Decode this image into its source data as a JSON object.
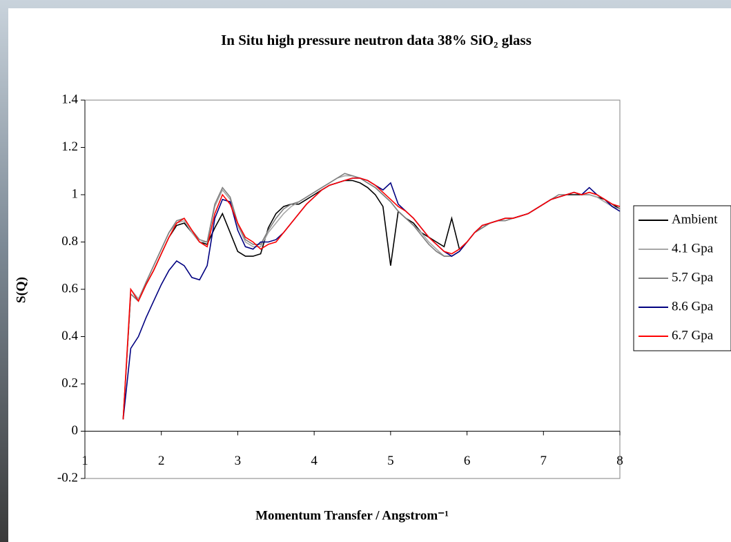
{
  "chart_data": {
    "type": "line",
    "title": "In Situ high pressure neutron data 38% SiO₂ glass",
    "x_label": "Momentum Transfer / Angstrom⁻¹",
    "y_label": "S(Q)",
    "xlim": [
      1,
      8
    ],
    "xticks": [
      1,
      2,
      3,
      4,
      5,
      6,
      7,
      8
    ],
    "ylim": [
      -0.2,
      1.4
    ],
    "yticks": [
      -0.2,
      0,
      0.2,
      0.4,
      0.6,
      0.8,
      1,
      1.2,
      1.4
    ],
    "legend": "right",
    "x": [
      1.5,
      1.6,
      1.7,
      1.8,
      1.9,
      2.0,
      2.1,
      2.2,
      2.3,
      2.4,
      2.5,
      2.6,
      2.7,
      2.8,
      2.9,
      3.0,
      3.1,
      3.2,
      3.3,
      3.4,
      3.5,
      3.6,
      3.7,
      3.8,
      3.9,
      4.0,
      4.1,
      4.2,
      4.3,
      4.4,
      4.5,
      4.6,
      4.7,
      4.8,
      4.9,
      5.0,
      5.1,
      5.2,
      5.3,
      5.4,
      5.5,
      5.6,
      5.7,
      5.8,
      5.9,
      6.0,
      6.1,
      6.2,
      6.3,
      6.4,
      6.5,
      6.6,
      6.7,
      6.8,
      6.9,
      7.0,
      7.1,
      7.2,
      7.3,
      7.4,
      7.5,
      7.6,
      7.7,
      7.8,
      7.9,
      8.0
    ],
    "series": [
      {
        "name": "Ambient",
        "color": "#000000",
        "values": [
          0.05,
          0.58,
          0.55,
          0.62,
          0.68,
          0.75,
          0.82,
          0.87,
          0.88,
          0.84,
          0.8,
          0.79,
          0.86,
          0.92,
          0.84,
          0.76,
          0.74,
          0.74,
          0.75,
          0.86,
          0.92,
          0.95,
          0.96,
          0.96,
          0.98,
          1.0,
          1.02,
          1.04,
          1.05,
          1.06,
          1.06,
          1.05,
          1.03,
          1.0,
          0.95,
          0.7,
          0.93,
          0.9,
          0.88,
          0.84,
          0.82,
          0.8,
          0.78,
          0.9,
          0.77,
          0.8,
          0.84,
          0.86,
          0.88,
          0.89,
          0.9,
          0.9,
          0.91,
          0.92,
          0.94,
          0.96,
          0.98,
          0.99,
          1.0,
          1.0,
          1.0,
          1.0,
          0.99,
          0.98,
          0.96,
          0.94
        ]
      },
      {
        "name": "4.1 Gpa",
        "color": "#a6a6a6",
        "values": [
          0.05,
          0.6,
          0.56,
          0.63,
          0.7,
          0.77,
          0.84,
          0.88,
          0.89,
          0.84,
          0.8,
          0.8,
          0.95,
          1.02,
          0.98,
          0.87,
          0.8,
          0.78,
          0.78,
          0.84,
          0.88,
          0.92,
          0.95,
          0.97,
          0.99,
          1.01,
          1.03,
          1.05,
          1.07,
          1.08,
          1.08,
          1.07,
          1.05,
          1.03,
          1.0,
          0.97,
          0.93,
          0.9,
          0.87,
          0.84,
          0.8,
          0.77,
          0.74,
          0.74,
          0.76,
          0.8,
          0.84,
          0.87,
          0.88,
          0.89,
          0.9,
          0.9,
          0.91,
          0.92,
          0.94,
          0.96,
          0.98,
          0.99,
          1.0,
          1.01,
          1.0,
          1.0,
          0.99,
          0.97,
          0.95,
          0.94
        ]
      },
      {
        "name": "5.7 Gpa",
        "color": "#7f7f7f",
        "values": [
          0.05,
          0.58,
          0.55,
          0.63,
          0.7,
          0.77,
          0.84,
          0.89,
          0.9,
          0.85,
          0.81,
          0.8,
          0.96,
          1.03,
          0.99,
          0.88,
          0.81,
          0.79,
          0.79,
          0.85,
          0.9,
          0.94,
          0.96,
          0.97,
          0.99,
          1.01,
          1.03,
          1.05,
          1.07,
          1.09,
          1.08,
          1.07,
          1.05,
          1.03,
          1.0,
          0.97,
          0.93,
          0.9,
          0.87,
          0.83,
          0.79,
          0.76,
          0.74,
          0.74,
          0.76,
          0.8,
          0.84,
          0.86,
          0.88,
          0.89,
          0.89,
          0.9,
          0.91,
          0.92,
          0.94,
          0.96,
          0.98,
          1.0,
          1.0,
          1.01,
          1.0,
          1.01,
          1.0,
          0.98,
          0.96,
          0.95
        ]
      },
      {
        "name": "8.6 Gpa",
        "color": "#000080",
        "values": [
          0.05,
          0.35,
          0.4,
          0.48,
          0.55,
          0.62,
          0.68,
          0.72,
          0.7,
          0.65,
          0.64,
          0.7,
          0.9,
          0.98,
          0.97,
          0.85,
          0.78,
          0.77,
          0.8,
          0.8,
          0.81,
          0.84,
          0.88,
          0.92,
          0.96,
          0.99,
          1.02,
          1.04,
          1.05,
          1.06,
          1.07,
          1.07,
          1.06,
          1.04,
          1.02,
          1.05,
          0.96,
          0.93,
          0.9,
          0.86,
          0.82,
          0.79,
          0.76,
          0.74,
          0.76,
          0.8,
          0.84,
          0.87,
          0.88,
          0.89,
          0.9,
          0.9,
          0.91,
          0.92,
          0.94,
          0.96,
          0.98,
          0.99,
          1.0,
          1.01,
          1.0,
          1.03,
          1.0,
          0.98,
          0.95,
          0.93
        ]
      },
      {
        "name": "6.7 Gpa",
        "color": "#ff0000",
        "values": [
          0.05,
          0.6,
          0.55,
          0.62,
          0.68,
          0.75,
          0.82,
          0.88,
          0.9,
          0.85,
          0.8,
          0.78,
          0.92,
          1.0,
          0.96,
          0.88,
          0.82,
          0.8,
          0.77,
          0.79,
          0.8,
          0.84,
          0.88,
          0.92,
          0.96,
          0.99,
          1.02,
          1.04,
          1.05,
          1.06,
          1.07,
          1.07,
          1.06,
          1.04,
          1.01,
          0.98,
          0.95,
          0.93,
          0.9,
          0.86,
          0.82,
          0.79,
          0.76,
          0.75,
          0.77,
          0.8,
          0.84,
          0.87,
          0.88,
          0.89,
          0.9,
          0.9,
          0.91,
          0.92,
          0.94,
          0.96,
          0.98,
          0.99,
          1.0,
          1.01,
          1.0,
          1.01,
          1.0,
          0.98,
          0.96,
          0.95
        ]
      }
    ]
  }
}
